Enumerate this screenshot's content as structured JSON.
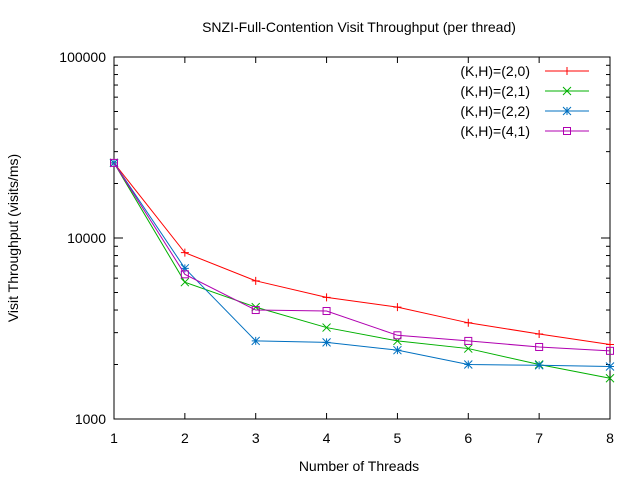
{
  "chart_data": {
    "type": "line",
    "title": "SNZI-Full-Contention Visit Throughput (per thread)",
    "xlabel": "Number of Threads",
    "ylabel": "Visit Throughput (visits/ms)",
    "x": [
      1,
      2,
      3,
      4,
      5,
      6,
      7,
      8
    ],
    "xlim": [
      1,
      8
    ],
    "ylim": [
      1000,
      100000
    ],
    "yscale": "log",
    "xticks": [
      1,
      2,
      3,
      4,
      5,
      6,
      7,
      8
    ],
    "yticks": [
      {
        "value": 1000,
        "label": "1000"
      },
      {
        "value": 10000,
        "label": "10000"
      },
      {
        "value": 100000,
        "label": "100000"
      }
    ],
    "grid": false,
    "legend_position": "top-right",
    "series": [
      {
        "name": "(K,H)=(2,0)",
        "color": "#ff0000",
        "marker": "plus",
        "values": [
          26000,
          8300,
          5800,
          4700,
          4150,
          3400,
          2950,
          2580
        ]
      },
      {
        "name": "(K,H)=(2,1)",
        "color": "#00b000",
        "marker": "cross",
        "values": [
          26000,
          5700,
          4150,
          3200,
          2700,
          2450,
          2000,
          1680
        ]
      },
      {
        "name": "(K,H)=(2,2)",
        "color": "#0070c0",
        "marker": "star",
        "values": [
          26000,
          6800,
          2700,
          2650,
          2400,
          2000,
          1980,
          1950
        ]
      },
      {
        "name": "(K,H)=(4,1)",
        "color": "#b000b0",
        "marker": "square",
        "values": [
          26000,
          6300,
          4000,
          3950,
          2900,
          2700,
          2500,
          2380
        ]
      }
    ]
  }
}
